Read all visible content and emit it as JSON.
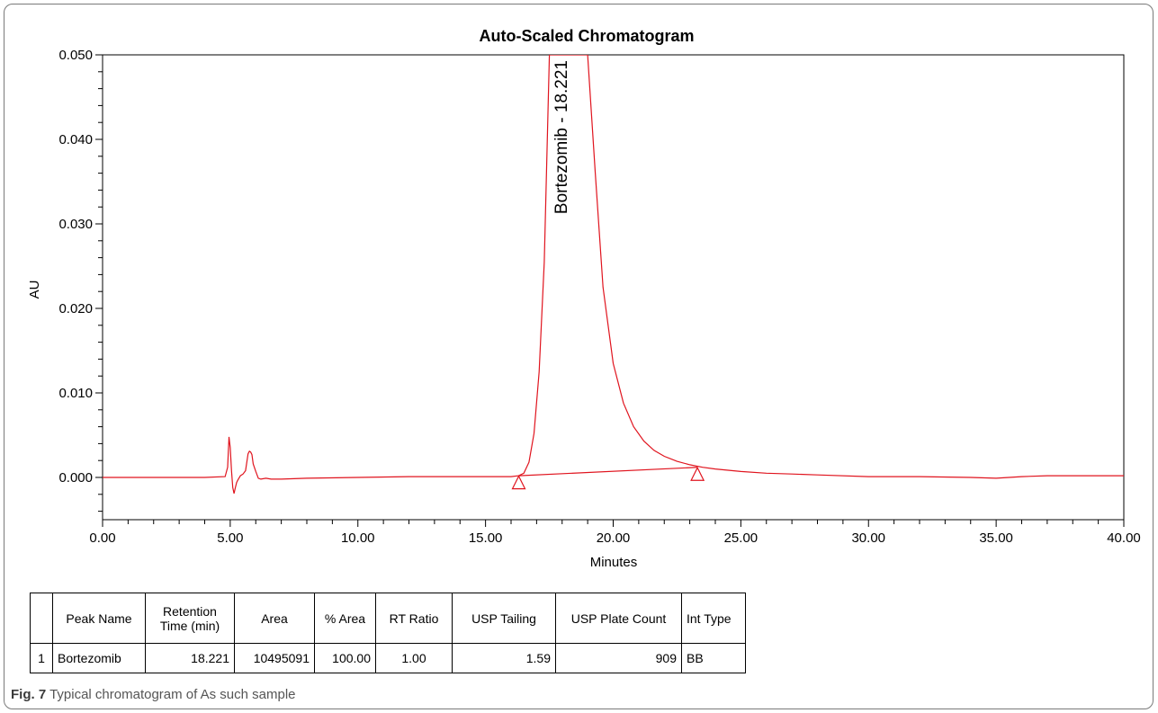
{
  "chart_data": {
    "type": "line",
    "title": "Auto-Scaled Chromatogram",
    "xlabel": "Minutes",
    "ylabel": "AU",
    "xlim": [
      0,
      40
    ],
    "ylim": [
      -0.005,
      0.05
    ],
    "x_ticks": [
      "0.00",
      "5.00",
      "10.00",
      "15.00",
      "20.00",
      "25.00",
      "30.00",
      "35.00",
      "40.00"
    ],
    "y_ticks": [
      "0.000",
      "0.010",
      "0.020",
      "0.030",
      "0.040",
      "0.050"
    ],
    "line_color": "#e0141e",
    "peak_label": "Bortezomib - 18.221",
    "series": [
      {
        "x": [
          0,
          2,
          4,
          4.8,
          4.9,
          4.95,
          5.0,
          5.05,
          5.1,
          5.15,
          5.2,
          5.25,
          5.3,
          5.4,
          5.5,
          5.6,
          5.7,
          5.75,
          5.8,
          5.85,
          5.9,
          6.0,
          6.1,
          6.2,
          6.4,
          6.6,
          7,
          8,
          10,
          12,
          14,
          15,
          15.5,
          16,
          16.3,
          16.5,
          16.7,
          16.9,
          17.1,
          17.3,
          17.5,
          19.0,
          19.3,
          19.6,
          20.0,
          20.4,
          20.8,
          21.2,
          21.6,
          22.0,
          22.5,
          23.0,
          23.5,
          24.0,
          25.0,
          26.0,
          27.0,
          28.0,
          30.0,
          32.0,
          34.0,
          35.0,
          36.0,
          37.0,
          38.0,
          40.0
        ],
        "y": [
          0,
          0,
          0,
          0.0001,
          0.0012,
          0.0048,
          0.0035,
          0.0008,
          -0.0012,
          -0.0019,
          -0.0012,
          -0.0006,
          -0.0003,
          0.0002,
          0.0004,
          0.0008,
          0.0028,
          0.0031,
          0.003,
          0.0027,
          0.0016,
          0.0007,
          -0.0001,
          -0.0002,
          -0.0001,
          -0.0002,
          -0.0002,
          -0.0001,
          0,
          0.0001,
          0.0001,
          0.0001,
          0.0001,
          0.0001,
          0.0002,
          0.0005,
          0.0018,
          0.0052,
          0.0125,
          0.0255,
          0.05,
          0.05,
          0.036,
          0.0225,
          0.0135,
          0.0088,
          0.006,
          0.0043,
          0.0032,
          0.0025,
          0.0019,
          0.0015,
          0.0012,
          0.001,
          0.0007,
          0.0005,
          0.0004,
          0.0003,
          0.0001,
          0.0001,
          0.0,
          -0.0001,
          0.0001,
          0.0002,
          0.0002,
          0.0002
        ]
      }
    ],
    "baseline": {
      "x": [
        16.3,
        23.3
      ],
      "y": [
        0.0002,
        0.0012
      ]
    },
    "markers": [
      {
        "x": 16.3,
        "y": -0.0006
      },
      {
        "x": 23.3,
        "y": 0.0004
      }
    ]
  },
  "table": {
    "headers": [
      "",
      "Peak Name",
      "Retention Time (min)",
      "Area",
      "% Area",
      "RT Ratio",
      "USP Tailing",
      "USP Plate Count",
      "Int Type"
    ],
    "rows": [
      [
        "1",
        "Bortezomib",
        "18.221",
        "10495091",
        "100.00",
        "1.00",
        "1.59",
        "909",
        "BB"
      ]
    ]
  },
  "caption": {
    "label": "Fig. 7",
    "text": " Typical chromatogram of As such sample"
  }
}
